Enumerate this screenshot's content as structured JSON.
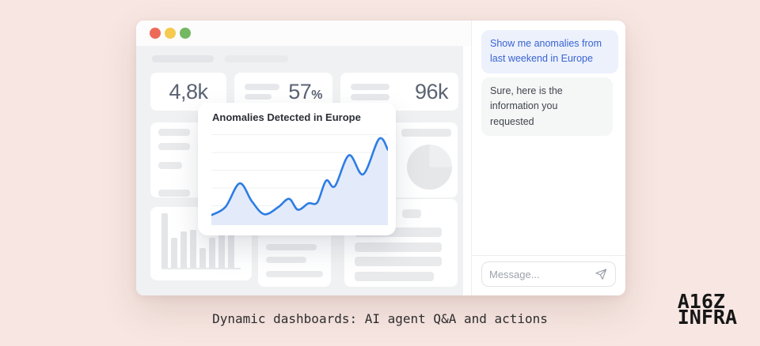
{
  "colors": {
    "background": "#f7e6e2",
    "traffic_lights": [
      "#ed6a5a",
      "#f6c94f",
      "#74b861"
    ],
    "accent_blue": "#2e7de4",
    "chart_fill": "#e3ebfa",
    "chart_grid": "#eef0f2",
    "user_bubble_bg": "#ecf1fc",
    "user_bubble_text": "#3a63d2",
    "bot_bubble_bg": "#f5f6f6"
  },
  "dashboard": {
    "kpis": [
      {
        "main": "4,8k",
        "sup": ""
      },
      {
        "main": "57",
        "sup": "%"
      },
      {
        "main": "96k",
        "sup": ""
      }
    ],
    "bar_skeleton_heights": [
      69,
      38,
      46,
      48,
      25,
      38,
      48,
      60
    ]
  },
  "chart_card": {
    "title": "Anomalies Detected in Europe"
  },
  "chart_data": {
    "type": "area",
    "title": "Anomalies Detected in Europe",
    "x": [
      0,
      8,
      16,
      23,
      30,
      38,
      44,
      49,
      55,
      60,
      65,
      70,
      78,
      86,
      95,
      100
    ],
    "y": [
      11,
      20,
      46,
      26,
      12,
      20,
      29,
      17,
      24,
      25,
      49,
      43,
      77,
      56,
      95,
      83
    ],
    "xlabel": "",
    "ylabel": "",
    "xlim": [
      0,
      100
    ],
    "ylim": [
      0,
      100
    ],
    "grid": true,
    "legend": false,
    "line_color": "#2e7de4",
    "fill_color": "#e3ebfa"
  },
  "chat": {
    "messages": [
      {
        "role": "user",
        "text": "Show me anomalies from last weekend in Europe"
      },
      {
        "role": "assistant",
        "text": "Sure, here is the information you requested"
      }
    ],
    "input_placeholder": "Message..."
  },
  "caption": "Dynamic dashboards: AI agent Q&A and actions",
  "logo": {
    "line1": "A16Z",
    "line2": "INFRA"
  }
}
